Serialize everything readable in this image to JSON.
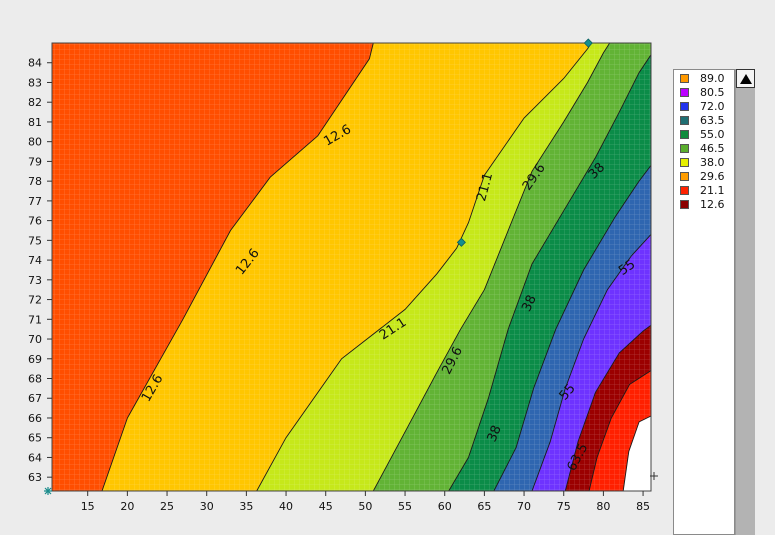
{
  "chart_data": {
    "type": "contour",
    "title": "",
    "xlabel": "",
    "ylabel": "",
    "xlim": [
      10.5,
      86
    ],
    "ylim": [
      62.3,
      85
    ],
    "x_ticks": [
      15,
      20,
      25,
      30,
      35,
      40,
      45,
      50,
      55,
      60,
      65,
      70,
      75,
      80,
      85
    ],
    "y_ticks": [
      63,
      64,
      65,
      66,
      67,
      68,
      69,
      70,
      71,
      72,
      73,
      74,
      75,
      76,
      77,
      78,
      79,
      80,
      81,
      82,
      83,
      84
    ],
    "grid": true,
    "legend_position": "right",
    "legend": [
      {
        "label": "89.0",
        "color": "#ff9900"
      },
      {
        "label": "80.5",
        "color": "#bb00ff"
      },
      {
        "label": "72.0",
        "color": "#2233ee"
      },
      {
        "label": "63.5",
        "color": "#1f6f73"
      },
      {
        "label": "55.0",
        "color": "#108a3c"
      },
      {
        "label": "46.5",
        "color": "#5aae2e"
      },
      {
        "label": "38.0",
        "color": "#e6f000"
      },
      {
        "label": "29.6",
        "color": "#ff9d00"
      },
      {
        "label": "21.1",
        "color": "#ff2200"
      },
      {
        "label": "12.6",
        "color": "#8b0000"
      }
    ],
    "bands": [
      {
        "name": "0-12.6",
        "color": "#ff4e00"
      },
      {
        "name": "12.6-21.1",
        "color": "#ffc600"
      },
      {
        "name": "21.1-29.6",
        "color": "#c6e81a"
      },
      {
        "name": "29.6-38",
        "color": "#62b335"
      },
      {
        "name": "38-46.5",
        "color": "#0b8c48"
      },
      {
        "name": "46.5-55",
        "color": "#2f66b0"
      },
      {
        "name": "55-63.5",
        "color": "#6e33ff"
      },
      {
        "name": "63.5-72",
        "color": "#9b0000"
      },
      {
        "name": "72-80.5",
        "color": "#ff2000"
      },
      {
        "name": "80.5-89",
        "color": "#ffffff"
      }
    ],
    "contours": [
      {
        "level": "12.6",
        "points": [
          [
            16.8,
            62.3
          ],
          [
            20,
            66
          ],
          [
            27,
            71
          ],
          [
            33,
            75.5
          ],
          [
            38,
            78.2
          ],
          [
            44,
            80.3
          ],
          [
            50.5,
            84.2
          ],
          [
            51,
            85
          ]
        ]
      },
      {
        "level": "21.1",
        "points": [
          [
            36.3,
            62.3
          ],
          [
            40,
            65
          ],
          [
            47,
            69
          ],
          [
            55,
            71.5
          ],
          [
            59,
            73.3
          ],
          [
            61.5,
            74.6
          ],
          [
            63,
            75.9
          ],
          [
            65,
            78.3
          ],
          [
            70,
            81.2
          ],
          [
            75,
            83.2
          ],
          [
            78,
            84.7
          ],
          [
            78.5,
            85
          ]
        ]
      },
      {
        "level": "29.6",
        "points": [
          [
            51,
            62.3
          ],
          [
            55,
            65.3
          ],
          [
            59,
            68.3
          ],
          [
            62,
            70.5
          ],
          [
            65,
            72.5
          ],
          [
            67.5,
            75
          ],
          [
            71,
            78.5
          ],
          [
            75,
            81
          ],
          [
            78,
            83
          ],
          [
            80,
            84.5
          ],
          [
            80.8,
            85
          ]
        ]
      },
      {
        "level": "38",
        "points": [
          [
            60.5,
            62.3
          ],
          [
            63,
            64
          ],
          [
            65.5,
            67
          ],
          [
            68,
            70.5
          ],
          [
            71,
            73.8
          ],
          [
            75,
            76.5
          ],
          [
            79,
            79.2
          ],
          [
            82,
            81.5
          ],
          [
            84.5,
            83.5
          ],
          [
            86,
            84.4
          ]
        ]
      },
      {
        "level": "46.5",
        "points": [
          [
            66.2,
            62.3
          ],
          [
            69,
            64.5
          ],
          [
            71.2,
            67.5
          ],
          [
            74,
            70.5
          ],
          [
            77.5,
            73.5
          ],
          [
            81.5,
            76.2
          ],
          [
            84.5,
            78
          ],
          [
            86,
            78.8
          ]
        ]
      },
      {
        "level": "55",
        "points": [
          [
            71,
            62.3
          ],
          [
            73.3,
            64.8
          ],
          [
            75.2,
            67.5
          ],
          [
            77.5,
            70
          ],
          [
            80.5,
            72.5
          ],
          [
            83.5,
            74.2
          ],
          [
            86,
            75.3
          ]
        ]
      },
      {
        "level": "63.5",
        "points": [
          [
            75.2,
            62.3
          ],
          [
            76.8,
            64.8
          ],
          [
            79,
            67.3
          ],
          [
            82,
            69.3
          ],
          [
            85,
            70.4
          ],
          [
            86,
            70.7
          ]
        ]
      },
      {
        "level": "72",
        "points": [
          [
            78.2,
            62.3
          ],
          [
            79.2,
            64
          ],
          [
            81,
            66
          ],
          [
            83.3,
            67.7
          ],
          [
            86,
            68.4
          ]
        ]
      },
      {
        "level": "80.5",
        "points": [
          [
            82.5,
            62.3
          ],
          [
            83.2,
            64.3
          ],
          [
            84.5,
            65.8
          ],
          [
            86,
            66.1
          ]
        ]
      }
    ],
    "contour_labels": [
      {
        "text": "12.6",
        "x": 23.2,
        "y": 67.5,
        "angle": -60
      },
      {
        "text": "12.6",
        "x": 35.2,
        "y": 73.9,
        "angle": -52
      },
      {
        "text": "12.6",
        "x": 46.5,
        "y": 80.3,
        "angle": -30
      },
      {
        "text": "21.1",
        "x": 53.5,
        "y": 70.5,
        "angle": -33
      },
      {
        "text": "21.1",
        "x": 65.1,
        "y": 77.7,
        "angle": -75
      },
      {
        "text": "29.6",
        "x": 61.0,
        "y": 68.9,
        "angle": -63
      },
      {
        "text": "29.6",
        "x": 71.3,
        "y": 78.2,
        "angle": -55
      },
      {
        "text": "38",
        "x": 66.3,
        "y": 65.2,
        "angle": -68
      },
      {
        "text": "38",
        "x": 70.7,
        "y": 71.8,
        "angle": -65
      },
      {
        "text": "38",
        "x": 79.2,
        "y": 78.5,
        "angle": -45
      },
      {
        "text": "55",
        "x": 75.5,
        "y": 67.3,
        "angle": -50
      },
      {
        "text": "55",
        "x": 83.0,
        "y": 73.6,
        "angle": -35
      },
      {
        "text": "63.5",
        "x": 76.8,
        "y": 64.0,
        "angle": -62
      }
    ],
    "markers": [
      {
        "x": 78.1,
        "y": 85.0
      },
      {
        "x": 62.1,
        "y": 74.9
      }
    ]
  }
}
